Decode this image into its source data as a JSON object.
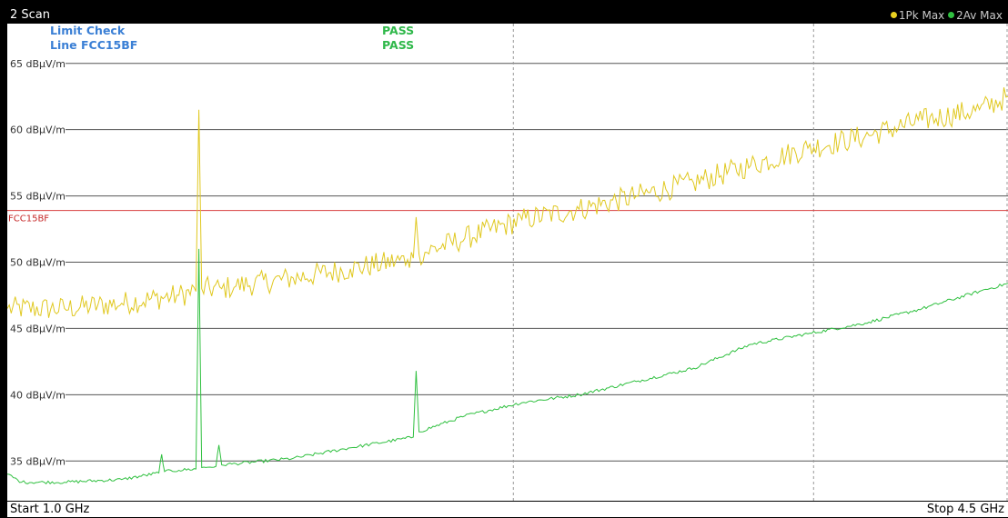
{
  "header": {
    "title": "2 Scan",
    "legend": [
      {
        "label": "1Pk Max",
        "color": "#e8d020"
      },
      {
        "label": "2Av Max",
        "color": "#30c040"
      }
    ]
  },
  "limit_check": {
    "rows": [
      {
        "label": "Limit Check",
        "result": "PASS"
      },
      {
        "label": "Line FCC15BF",
        "result": "PASS"
      }
    ]
  },
  "footer": {
    "start": "Start 1.0 GHz",
    "stop": "Stop 4.5 GHz"
  },
  "colors": {
    "trace1": "#e0c820",
    "trace2": "#30c040",
    "limit": "#d84040",
    "label_blue": "#3a7fd5",
    "pass_green": "#2fb84a"
  },
  "chart_data": {
    "type": "line",
    "x_unit": "GHz",
    "y_unit": "dBµV/m",
    "xlim": [
      1.0,
      4.5
    ],
    "ylim": [
      32.0,
      68.0
    ],
    "y_ticks": [
      {
        "value": 65,
        "label": "65 dBµV/m"
      },
      {
        "value": 60,
        "label": "60 dBµV/m"
      },
      {
        "value": 55,
        "label": "55 dBµV/m"
      },
      {
        "value": 50,
        "label": "50 dBµV/m"
      },
      {
        "value": 45,
        "label": "45 dBµV/m"
      },
      {
        "value": 40,
        "label": "40 dBµV/m"
      },
      {
        "value": 35,
        "label": "35 dBµV/m"
      }
    ],
    "x_grid_dashed": [
      2.77,
      3.82,
      4.56
    ],
    "limit_line": {
      "name": "FCC15BF",
      "value": 53.9
    },
    "series": [
      {
        "name": "1Pk Max",
        "color": "#e0c820",
        "x": [
          1.0,
          1.2,
          1.4,
          1.6,
          1.66,
          1.67,
          1.68,
          1.75,
          1.8,
          2.0,
          2.2,
          2.4,
          2.42,
          2.43,
          2.44,
          2.6,
          2.8,
          3.0,
          3.2,
          3.4,
          3.6,
          3.8,
          4.0,
          4.2,
          4.4,
          4.5
        ],
        "y": [
          46.5,
          46.5,
          46.9,
          47.5,
          47.8,
          61.5,
          48.0,
          48.0,
          48.2,
          48.8,
          49.5,
          50.2,
          50.3,
          53.4,
          50.6,
          51.8,
          53.2,
          54.0,
          55.0,
          56.0,
          57.3,
          58.6,
          59.5,
          60.7,
          61.5,
          62.5
        ]
      },
      {
        "name": "2Av Max",
        "color": "#30c040",
        "x": [
          1.0,
          1.05,
          1.2,
          1.4,
          1.53,
          1.54,
          1.55,
          1.6,
          1.66,
          1.67,
          1.68,
          1.73,
          1.74,
          1.75,
          1.8,
          2.0,
          2.2,
          2.42,
          2.43,
          2.44,
          2.6,
          2.8,
          3.0,
          3.2,
          3.4,
          3.6,
          3.8,
          4.0,
          4.2,
          4.4,
          4.5
        ],
        "y": [
          34.0,
          33.4,
          33.4,
          33.6,
          34.1,
          35.5,
          34.2,
          34.3,
          34.4,
          51.0,
          34.5,
          34.6,
          36.2,
          34.7,
          34.8,
          35.2,
          36.0,
          36.8,
          41.8,
          37.2,
          38.4,
          39.4,
          40.0,
          41.0,
          42.0,
          43.8,
          44.6,
          45.4,
          46.5,
          47.8,
          48.4
        ]
      }
    ]
  }
}
